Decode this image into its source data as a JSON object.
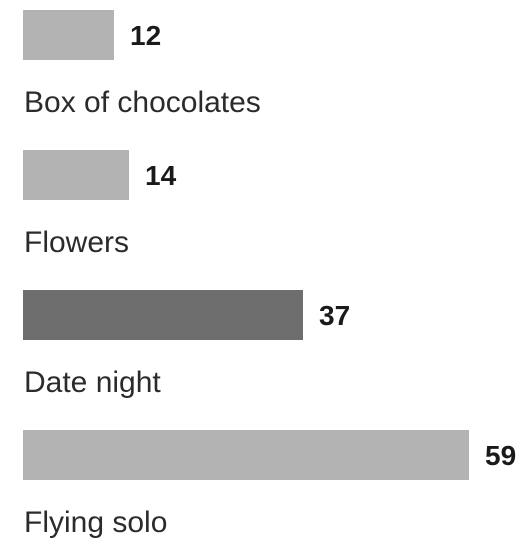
{
  "chart_data": {
    "type": "bar",
    "orientation": "horizontal",
    "categories": [
      "Box of chocolates",
      "Flowers",
      "Date night",
      "Flying solo"
    ],
    "values": [
      12,
      14,
      37,
      59
    ],
    "xlim": [
      0,
      59
    ],
    "grid": false,
    "legend": "none",
    "data_labels": true
  },
  "colors": {
    "bar_default": "#b3b3b3",
    "bar_highlight": "#6e6e6e",
    "text": "#1a1a1a",
    "highlight_index": 2
  }
}
